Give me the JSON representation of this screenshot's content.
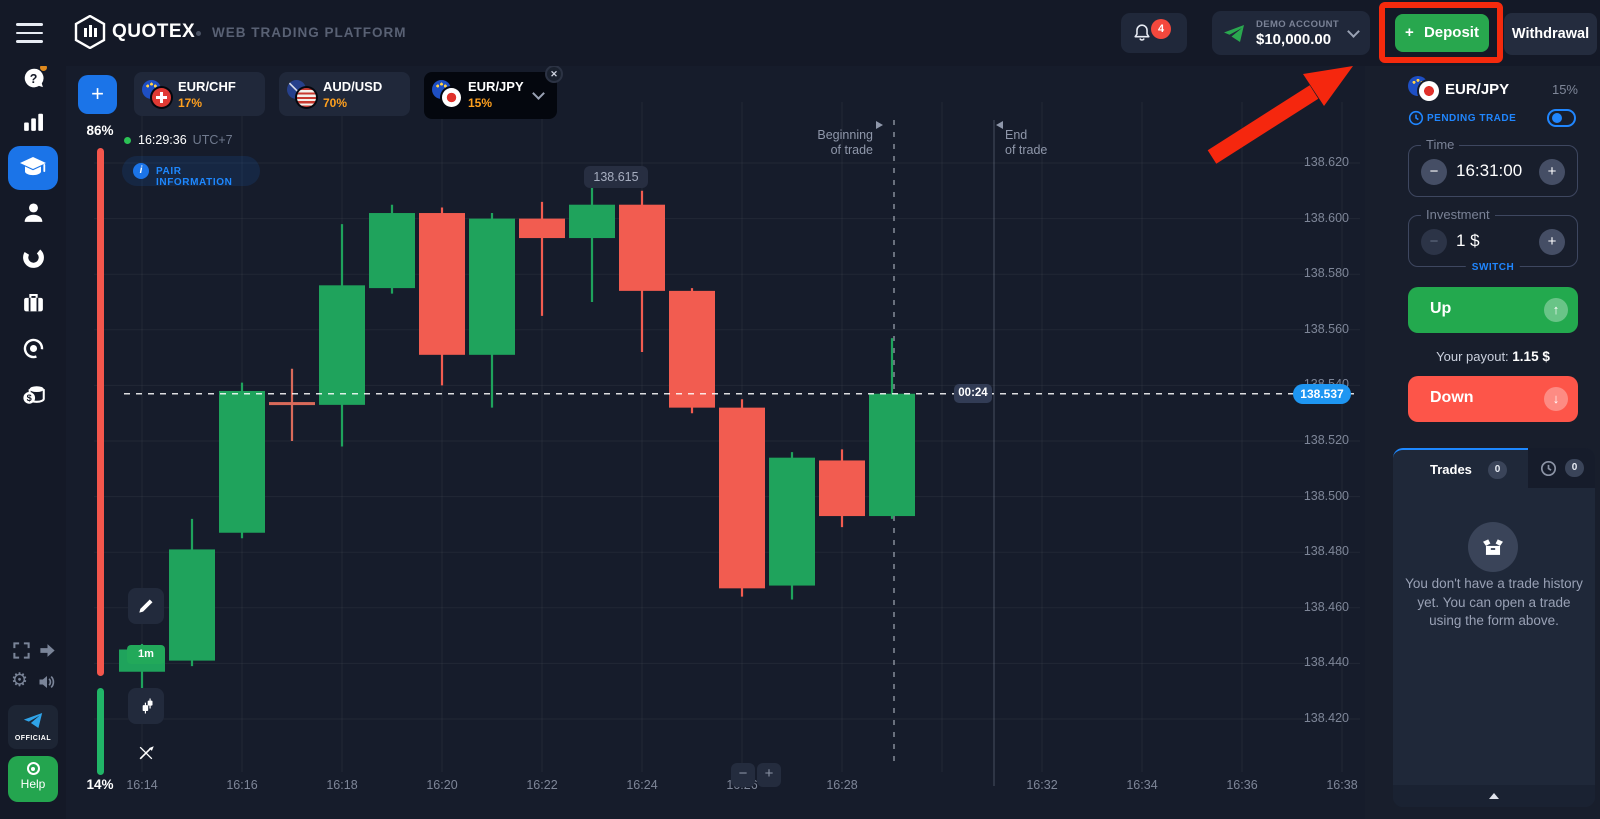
{
  "topbar": {
    "brand": "QUOTEX",
    "subtitle": "WEB TRADING PLATFORM",
    "notifications_count": "4",
    "account_type": "DEMO ACCOUNT",
    "balance": "$10,000.00",
    "deposit_label": "Deposit",
    "deposit_plus": "+",
    "withdrawal_label": "Withdrawal"
  },
  "sidebar": {
    "official_label": "OFFICIAL",
    "help_label": "Help"
  },
  "asset_tabs": [
    {
      "pair": "EUR/CHF",
      "payout": "17%"
    },
    {
      "pair": "AUD/USD",
      "payout": "70%"
    },
    {
      "pair": "EUR/JPY",
      "payout": "15%",
      "close": "✕"
    }
  ],
  "chart": {
    "clock": "16:29:36",
    "timezone": "UTC+7",
    "pair_information": "PAIR INFORMATION",
    "timeframe_badge": "1m",
    "sentiment_down": "86%",
    "sentiment_up": "14%",
    "begin_line1": "Beginning",
    "begin_line2": "of trade",
    "end_line1": "End",
    "end_line2": "of trade",
    "zoom_out": "−",
    "zoom_in": "+"
  },
  "chart_data": {
    "type": "candlestick",
    "pair": "EUR/JPY",
    "timeframe": "1m",
    "title": "EUR/JPY 1m candlestick chart",
    "ylim": [
      138.41,
      138.64
    ],
    "grid": true,
    "price_axis": [
      "138.620",
      "138.600",
      "138.580",
      "138.560",
      "138.540",
      "138.520",
      "138.500",
      "138.480",
      "138.460",
      "138.440",
      "138.420"
    ],
    "time_axis": [
      "16:14",
      "16:16",
      "16:18",
      "16:20",
      "16:22",
      "16:24",
      "16:26",
      "16:28",
      "16:32",
      "16:34",
      "16:36",
      "16:38"
    ],
    "current_price": "138.537",
    "countdown": "00:24",
    "high_label": "138.615",
    "colors": {
      "up": "#1fa35c",
      "down": "#f25c50",
      "accent_blue": "#1e96f2",
      "orange": "#ffa01e"
    },
    "candles": [
      {
        "t": "16:14",
        "o": 138.437,
        "h": 138.447,
        "l": 138.426,
        "c": 138.445
      },
      {
        "t": "16:15",
        "o": 138.441,
        "h": 138.492,
        "l": 138.439,
        "c": 138.481
      },
      {
        "t": "16:16",
        "o": 138.487,
        "h": 138.541,
        "l": 138.485,
        "c": 138.538
      },
      {
        "t": "16:17",
        "o": 138.534,
        "h": 138.546,
        "l": 138.52,
        "c": 138.533
      },
      {
        "t": "16:18",
        "o": 138.533,
        "h": 138.598,
        "l": 138.518,
        "c": 138.576
      },
      {
        "t": "16:19",
        "o": 138.575,
        "h": 138.605,
        "l": 138.573,
        "c": 138.602
      },
      {
        "t": "16:20",
        "o": 138.602,
        "h": 138.604,
        "l": 138.54,
        "c": 138.551
      },
      {
        "t": "16:21",
        "o": 138.551,
        "h": 138.602,
        "l": 138.532,
        "c": 138.6
      },
      {
        "t": "16:22",
        "o": 138.6,
        "h": 138.606,
        "l": 138.565,
        "c": 138.593
      },
      {
        "t": "16:23",
        "o": 138.593,
        "h": 138.615,
        "l": 138.57,
        "c": 138.605
      },
      {
        "t": "16:24",
        "o": 138.605,
        "h": 138.61,
        "l": 138.552,
        "c": 138.574
      },
      {
        "t": "16:25",
        "o": 138.574,
        "h": 138.575,
        "l": 138.53,
        "c": 138.532
      },
      {
        "t": "16:26",
        "o": 138.532,
        "h": 138.535,
        "l": 138.464,
        "c": 138.467
      },
      {
        "t": "16:27",
        "o": 138.468,
        "h": 138.516,
        "l": 138.463,
        "c": 138.514
      },
      {
        "t": "16:28",
        "o": 138.513,
        "h": 138.517,
        "l": 138.489,
        "c": 138.493
      },
      {
        "t": "16:29",
        "o": 138.493,
        "h": 138.557,
        "l": 138.492,
        "c": 138.537
      }
    ]
  },
  "trade_panel": {
    "pair": "EUR/JPY",
    "payout_percent": "15%",
    "pending_trade": "PENDING TRADE",
    "time_label": "Time",
    "time_value": "16:31:00",
    "minus": "−",
    "plus": "+",
    "investment_label": "Investment",
    "investment_value": "1 $",
    "switch_label": "SWITCH",
    "up_label": "Up",
    "down_label": "Down",
    "payout_prefix": "Your payout:",
    "payout_value": "1.15 $",
    "trades_tab": "Trades",
    "trades_count": "0",
    "history_count": "0",
    "empty_text": "You don't have a trade history yet. You can open a trade using the form above."
  }
}
